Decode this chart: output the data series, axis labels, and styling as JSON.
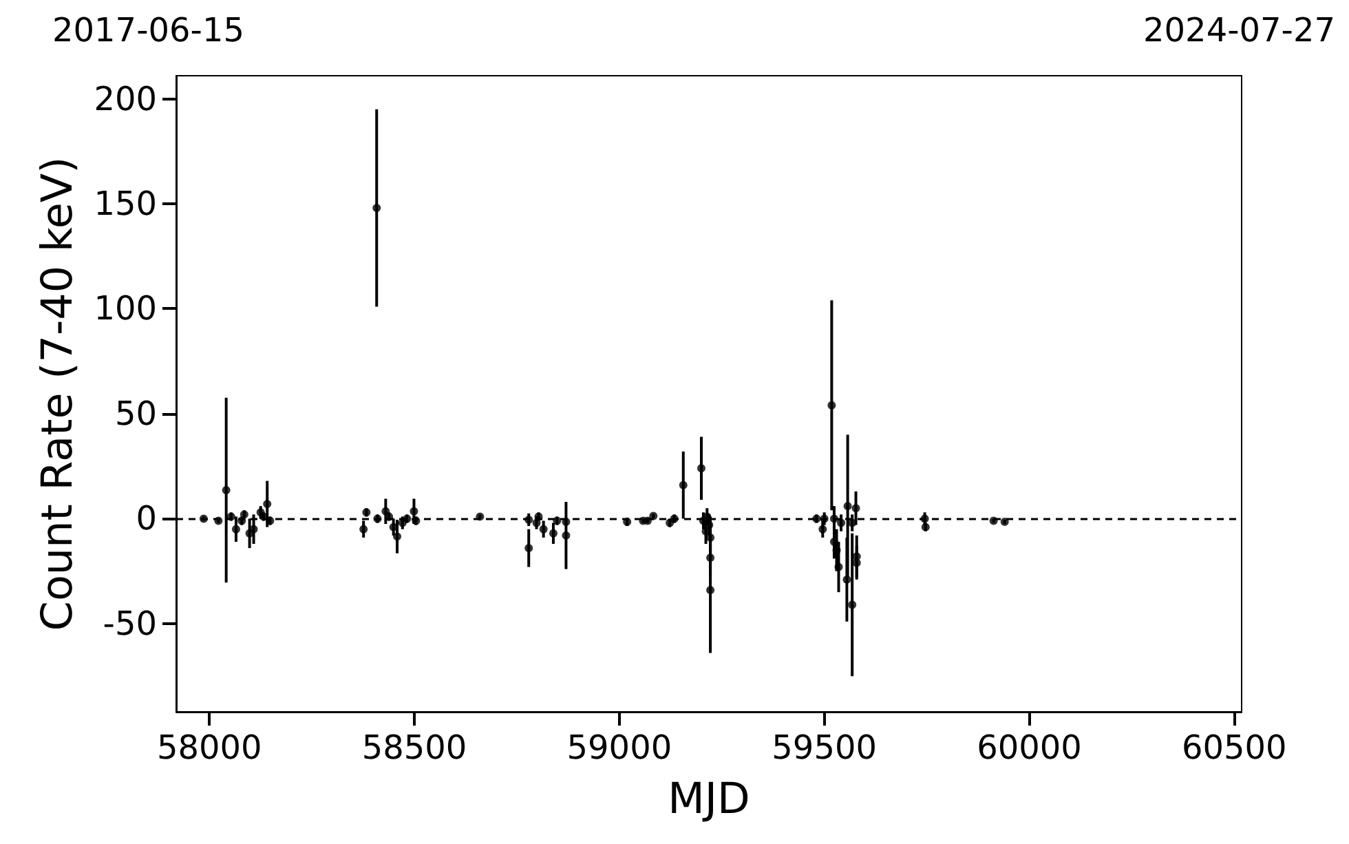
{
  "chart_data": {
    "type": "scatter",
    "xlabel": "MJD",
    "ylabel": "Count Rate (7-40 keV)",
    "x": [
      57986,
      58022,
      58041,
      58053,
      58065,
      58079,
      58085,
      58098,
      58108,
      58125,
      58132,
      58141,
      58148,
      58376,
      58383,
      58408,
      58410,
      58430,
      58438,
      58449,
      58458,
      58471,
      58482,
      58499,
      58504,
      58660,
      58779,
      58779,
      58798,
      58803,
      58815,
      58839,
      58848,
      58870,
      58870,
      59019,
      59058,
      59069,
      59083,
      59123,
      59134,
      59156,
      59200,
      59205,
      59211,
      59214,
      59219,
      59222,
      59222,
      59222,
      59481,
      59496,
      59500,
      59518,
      59524,
      59524,
      59530,
      59535,
      59541,
      59555,
      59557,
      59568,
      59568,
      59577,
      59579,
      59579,
      59745,
      59747,
      59913,
      59940
    ],
    "series": [
      {
        "color": "#000000",
        "values": [
          0,
          -1,
          13.6,
          1,
          -5,
          -1,
          2,
          -7,
          -5,
          3,
          1,
          7,
          -1,
          -5,
          3,
          148,
          0,
          3.5,
          1,
          -4,
          -8.5,
          -2,
          0,
          3.5,
          -1,
          1,
          -0.5,
          -14,
          -2,
          1,
          -5,
          -7,
          -1,
          -1.5,
          -8,
          -1.5,
          -1,
          -1,
          1.3,
          -2,
          0,
          16,
          24,
          -1,
          -6,
          1,
          -3,
          -9,
          -18.6,
          -34,
          0,
          -5,
          0,
          54,
          0,
          -11,
          -15,
          -23,
          -2,
          -29,
          6,
          -41,
          -2,
          5,
          -18,
          -21,
          0,
          -4,
          -1,
          -1.5
        ],
        "errors": [
          1,
          1,
          44,
          2,
          6,
          2,
          2,
          7,
          7,
          3,
          2,
          11,
          2,
          4,
          2,
          47,
          2,
          6,
          2,
          4,
          8,
          3,
          2,
          6,
          2,
          1,
          3,
          9,
          3,
          2,
          4,
          5,
          2,
          2,
          16,
          2,
          1,
          1,
          1,
          2,
          2,
          16,
          15,
          4,
          6,
          4,
          5,
          10,
          9,
          30,
          2,
          4,
          3,
          50,
          6,
          8,
          10,
          12,
          4,
          20,
          34,
          34,
          4,
          8,
          10,
          8,
          3,
          2,
          1,
          1
        ]
      }
    ],
    "marker": "circle",
    "xlim": [
      57919,
      60518
    ],
    "xticks": [
      58000,
      58500,
      59000,
      59500,
      60000,
      60500
    ],
    "ylim": [
      -92,
      211
    ],
    "yticks": [
      -50,
      0,
      50,
      100,
      150,
      200
    ],
    "annotations": [
      "2017-06-15",
      "2024-07-27"
    ],
    "ref_lines": [
      {
        "axis": "y",
        "value": 0,
        "color": "#000000",
        "line_style": "dashed"
      }
    ],
    "data_labels": false
  }
}
